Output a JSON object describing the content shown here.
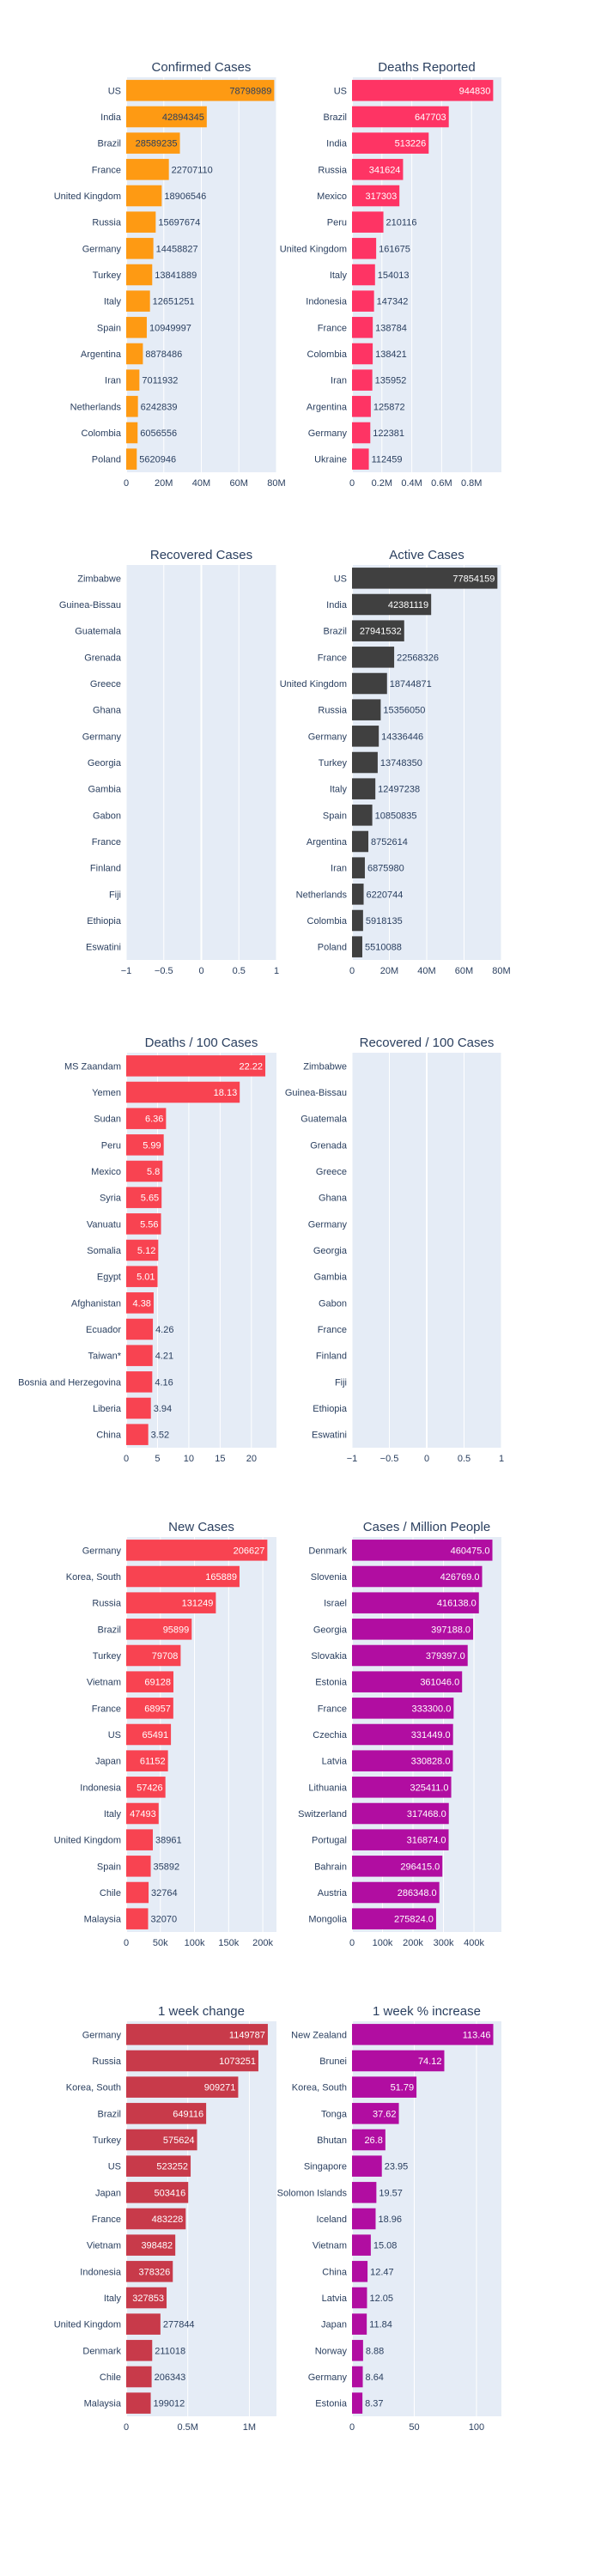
{
  "chart_data": [
    {
      "type": "bar",
      "orientation": "horizontal",
      "title": "Confirmed Cases",
      "categories": [
        "US",
        "India",
        "Brazil",
        "France",
        "United Kingdom",
        "Russia",
        "Germany",
        "Turkey",
        "Italy",
        "Spain",
        "Argentina",
        "Iran",
        "Netherlands",
        "Colombia",
        "Poland"
      ],
      "values": [
        78798989,
        42894345,
        28589235,
        22707110,
        18906546,
        15697674,
        14458827,
        13841889,
        12651251,
        10949997,
        8878486,
        7011932,
        6242839,
        6056556,
        5620946
      ],
      "tick_labels": [
        "0",
        "20M",
        "40M",
        "60M",
        "80M"
      ],
      "xlim": [
        0,
        80000000
      ],
      "color": "#fe9a13",
      "grid": true
    },
    {
      "type": "bar",
      "orientation": "horizontal",
      "title": "Deaths Reported",
      "categories": [
        "US",
        "Brazil",
        "India",
        "Russia",
        "Mexico",
        "Peru",
        "United Kingdom",
        "Italy",
        "Indonesia",
        "France",
        "Colombia",
        "Iran",
        "Argentina",
        "Germany",
        "Ukraine"
      ],
      "values": [
        944830,
        647703,
        513226,
        341624,
        317303,
        210116,
        161675,
        154013,
        147342,
        138784,
        138421,
        135952,
        125872,
        122381,
        112459
      ],
      "tick_labels": [
        "0",
        "0.2M",
        "0.4M",
        "0.6M",
        "0.8M"
      ],
      "xlim": [
        0,
        1000000
      ],
      "color": "#fe3464",
      "grid": true
    },
    {
      "type": "bar",
      "orientation": "horizontal",
      "title": "Recovered Cases",
      "categories": [
        "Zimbabwe",
        "Guinea-Bissau",
        "Guatemala",
        "Grenada",
        "Greece",
        "Ghana",
        "Germany",
        "Georgia",
        "Gambia",
        "Gabon",
        "France",
        "Finland",
        "Fiji",
        "Ethiopia",
        "Eswatini"
      ],
      "values": [
        0,
        0,
        0,
        0,
        0,
        0,
        0,
        0,
        0,
        0,
        0,
        0,
        0,
        0,
        0
      ],
      "tick_labels": [
        "−1",
        "−0.5",
        "0",
        "0.5",
        "1"
      ],
      "xlim": [
        -1,
        1
      ],
      "color": "#2ca02c",
      "grid": true
    },
    {
      "type": "bar",
      "orientation": "horizontal",
      "title": "Active Cases",
      "categories": [
        "US",
        "India",
        "Brazil",
        "France",
        "United Kingdom",
        "Russia",
        "Germany",
        "Turkey",
        "Italy",
        "Spain",
        "Argentina",
        "Iran",
        "Netherlands",
        "Colombia",
        "Poland"
      ],
      "values": [
        77854159,
        42381119,
        27941532,
        22568326,
        18744871,
        15356050,
        14336446,
        13748350,
        12497238,
        10850835,
        8752614,
        6875980,
        6220744,
        5918135,
        5510088
      ],
      "tick_labels": [
        "0",
        "20M",
        "40M",
        "60M",
        "80M"
      ],
      "xlim": [
        0,
        80000000
      ],
      "color": "#404040",
      "grid": true
    },
    {
      "type": "bar",
      "orientation": "horizontal",
      "title": "Deaths / 100 Cases",
      "categories": [
        "MS Zaandam",
        "Yemen",
        "Sudan",
        "Peru",
        "Mexico",
        "Syria",
        "Vanuatu",
        "Somalia",
        "Egypt",
        "Afghanistan",
        "Ecuador",
        "Taiwan*",
        "Bosnia and Herzegovina",
        "Liberia",
        "China"
      ],
      "values": [
        22.22,
        18.13,
        6.36,
        5.99,
        5.8,
        5.65,
        5.56,
        5.12,
        5.01,
        4.38,
        4.26,
        4.21,
        4.16,
        3.94,
        3.52
      ],
      "labels": [
        "22.22",
        "18.13",
        "6.36",
        "5.99",
        "5.8",
        "5.65",
        "5.56",
        "5.12",
        "5.01",
        "4.38",
        "4.26",
        "4.21",
        "4.16",
        "3.94",
        "3.52"
      ],
      "tick_labels": [
        "0",
        "5",
        "10",
        "15",
        "20"
      ],
      "xlim": [
        0,
        24
      ],
      "color": "#f84351",
      "grid": true
    },
    {
      "type": "bar",
      "orientation": "horizontal",
      "title": "Recovered / 100 Cases",
      "categories": [
        "Zimbabwe",
        "Guinea-Bissau",
        "Guatemala",
        "Grenada",
        "Greece",
        "Ghana",
        "Germany",
        "Georgia",
        "Gambia",
        "Gabon",
        "France",
        "Finland",
        "Fiji",
        "Ethiopia",
        "Eswatini"
      ],
      "values": [
        0,
        0,
        0,
        0,
        0,
        0,
        0,
        0,
        0,
        0,
        0,
        0,
        0,
        0,
        0
      ],
      "tick_labels": [
        "−1",
        "−0.5",
        "0",
        "0.5",
        "1"
      ],
      "xlim": [
        -1,
        1
      ],
      "color": "#2ca02c",
      "grid": true
    },
    {
      "type": "bar",
      "orientation": "horizontal",
      "title": "New Cases",
      "categories": [
        "Germany",
        "Korea, South",
        "Russia",
        "Brazil",
        "Turkey",
        "Vietnam",
        "France",
        "US",
        "Japan",
        "Indonesia",
        "Italy",
        "United Kingdom",
        "Spain",
        "Chile",
        "Malaysia"
      ],
      "values": [
        206627,
        165889,
        131249,
        95899,
        79708,
        69128,
        68957,
        65491,
        61152,
        57426,
        47493,
        38961,
        35892,
        32764,
        32070
      ],
      "tick_labels": [
        "0",
        "50k",
        "100k",
        "150k",
        "200k"
      ],
      "xlim": [
        0,
        220000
      ],
      "color": "#f84351",
      "grid": true
    },
    {
      "type": "bar",
      "orientation": "horizontal",
      "title": "Cases / Million People",
      "categories": [
        "Denmark",
        "Slovenia",
        "Israel",
        "Georgia",
        "Slovakia",
        "Estonia",
        "France",
        "Czechia",
        "Latvia",
        "Lithuania",
        "Switzerland",
        "Portugal",
        "Bahrain",
        "Austria",
        "Mongolia"
      ],
      "values": [
        460475.0,
        426769.0,
        416138.0,
        397188.0,
        379397.0,
        361046.0,
        333300.0,
        331449.0,
        330828.0,
        325411.0,
        317468.0,
        316874.0,
        296415.0,
        286348.0,
        275824.0
      ],
      "labels": [
        "460475.0",
        "426769.0",
        "416138.0",
        "397188.0",
        "379397.0",
        "361046.0",
        "333300.0",
        "331449.0",
        "330828.0",
        "325411.0",
        "317468.0",
        "316874.0",
        "296415.0",
        "286348.0",
        "275824.0"
      ],
      "tick_labels": [
        "0",
        "100k",
        "200k",
        "300k",
        "400k"
      ],
      "xlim": [
        0,
        490000
      ],
      "color": "#b10da1",
      "grid": true
    },
    {
      "type": "bar",
      "orientation": "horizontal",
      "title": "1 week change",
      "categories": [
        "Germany",
        "Russia",
        "Korea, South",
        "Brazil",
        "Turkey",
        "US",
        "Japan",
        "France",
        "Vietnam",
        "Indonesia",
        "Italy",
        "United Kingdom",
        "Denmark",
        "Chile",
        "Malaysia"
      ],
      "values": [
        1149787,
        1073251,
        909271,
        649116,
        575624,
        523252,
        503416,
        483228,
        398482,
        378326,
        327853,
        277844,
        211018,
        206343,
        199012
      ],
      "tick_labels": [
        "0",
        "0.5M",
        "1M"
      ],
      "xlim": [
        0,
        1220000
      ],
      "color": "#c83a4a",
      "grid": true
    },
    {
      "type": "bar",
      "orientation": "horizontal",
      "title": "1 week % increase",
      "categories": [
        "New Zealand",
        "Brunei",
        "Korea, South",
        "Tonga",
        "Bhutan",
        "Singapore",
        "Solomon Islands",
        "Iceland",
        "Vietnam",
        "China",
        "Latvia",
        "Japan",
        "Norway",
        "Germany",
        "Estonia"
      ],
      "values": [
        113.46,
        74.12,
        51.79,
        37.62,
        26.8,
        23.95,
        19.57,
        18.96,
        15.08,
        12.47,
        12.05,
        11.84,
        8.88,
        8.64,
        8.37
      ],
      "labels": [
        "113.46",
        "74.12",
        "51.79",
        "37.62",
        "26.8",
        "23.95",
        "19.57",
        "18.96",
        "15.08",
        "12.47",
        "12.05",
        "11.84",
        "8.88",
        "8.64",
        "8.37"
      ],
      "tick_labels": [
        "0",
        "50",
        "100"
      ],
      "xlim": [
        0,
        120
      ],
      "color": "#b10da1",
      "grid": true
    }
  ]
}
